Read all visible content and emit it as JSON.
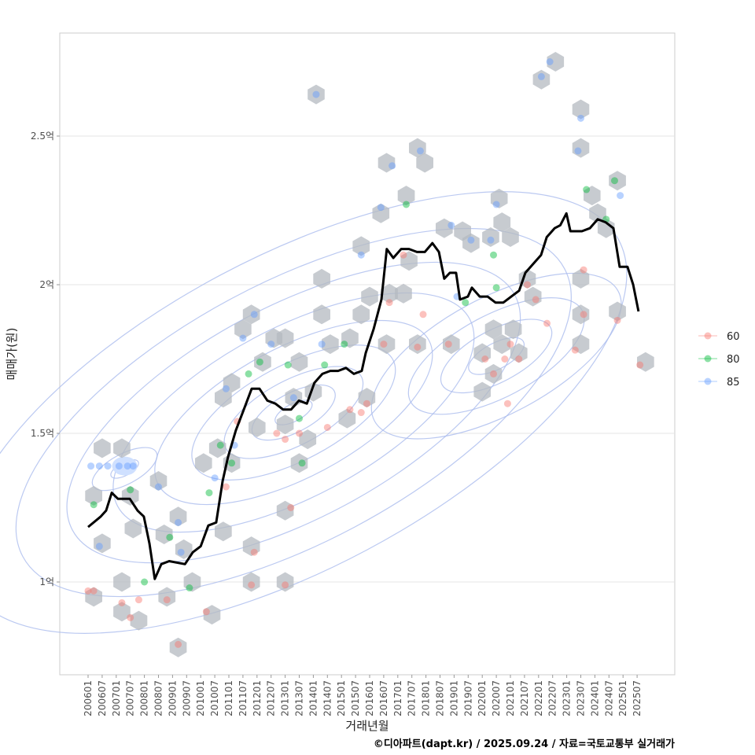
{
  "chart_data": {
    "type": "scatter",
    "title": "",
    "xlabel": "거래년월",
    "ylabel": "매매가(원)",
    "caption": "©디아파트(dapt.kr) / 2025.09.24 / 자료=국토교통부 실거래가",
    "xlim": [
      2005.0,
      2026.8
    ],
    "ylim": [
      0.7,
      2.87
    ],
    "x_ticks": [
      "200601",
      "200607",
      "200701",
      "200707",
      "200801",
      "200807",
      "200901",
      "200907",
      "201001",
      "201007",
      "201101",
      "201107",
      "201201",
      "201207",
      "201301",
      "201307",
      "201401",
      "201407",
      "201501",
      "201507",
      "201601",
      "201607",
      "201701",
      "201707",
      "201801",
      "201807",
      "201901",
      "201907",
      "202001",
      "202007",
      "202101",
      "202107",
      "202201",
      "202207",
      "202301",
      "202307",
      "202401",
      "202407",
      "202501",
      "202507"
    ],
    "y_ticks": [
      {
        "value": 1,
        "label": "1억"
      },
      {
        "value": 1.5,
        "label": "1.5억"
      },
      {
        "value": 2,
        "label": "2억"
      },
      {
        "value": 2.5,
        "label": "2.5억"
      }
    ],
    "grid": true,
    "legend": {
      "placement": "right",
      "entries": [
        {
          "name": "60",
          "color": "#F8766D"
        },
        {
          "name": "80",
          "color": "#00BA38"
        },
        {
          "name": "85",
          "color": "#619CFF"
        }
      ]
    },
    "median_line": {
      "color": "#000000",
      "x": [
        2006.0,
        2006.45,
        2006.64,
        2006.84,
        2007.06,
        2007.48,
        2007.76,
        2007.98,
        2008.18,
        2008.37,
        2008.6,
        2008.88,
        2009.44,
        2009.72,
        2010.0,
        2010.27,
        2010.55,
        2010.78,
        2010.97,
        2011.25,
        2011.53,
        2011.81,
        2012.09,
        2012.37,
        2012.65,
        2012.93,
        2013.21,
        2013.49,
        2013.77,
        2014.04,
        2014.32,
        2014.6,
        2014.88,
        2015.16,
        2015.44,
        2015.72,
        2015.86,
        2016.14,
        2016.42,
        2016.61,
        2016.84,
        2017.12,
        2017.4,
        2017.68,
        2017.96,
        2018.23,
        2018.46,
        2018.65,
        2018.85,
        2019.07,
        2019.21,
        2019.49,
        2019.63,
        2019.91,
        2020.19,
        2020.47,
        2020.75,
        2021.03,
        2021.31,
        2021.53,
        2021.81,
        2022.09,
        2022.29,
        2022.57,
        2022.77,
        2022.99,
        2023.13,
        2023.54,
        2023.82,
        2024.1,
        2024.38,
        2024.66,
        2024.88,
        2025.16,
        2025.36,
        2025.55
      ],
      "y": [
        1.185,
        1.22,
        1.24,
        1.3,
        1.28,
        1.28,
        1.24,
        1.22,
        1.13,
        1.01,
        1.06,
        1.07,
        1.06,
        1.1,
        1.12,
        1.19,
        1.2,
        1.34,
        1.42,
        1.51,
        1.58,
        1.65,
        1.65,
        1.61,
        1.6,
        1.58,
        1.58,
        1.61,
        1.6,
        1.67,
        1.7,
        1.71,
        1.71,
        1.72,
        1.7,
        1.71,
        1.77,
        1.85,
        1.95,
        2.12,
        2.09,
        2.12,
        2.12,
        2.11,
        2.11,
        2.14,
        2.11,
        2.02,
        2.04,
        2.04,
        1.95,
        1.96,
        1.99,
        1.96,
        1.96,
        1.94,
        1.94,
        1.96,
        1.98,
        2.04,
        2.07,
        2.1,
        2.16,
        2.19,
        2.2,
        2.24,
        2.18,
        2.18,
        2.19,
        2.22,
        2.21,
        2.19,
        2.06,
        2.06,
        2.0,
        1.91
      ]
    },
    "hexbins": [
      [
        2006.2,
        1.29
      ],
      [
        2006.5,
        1.45
      ],
      [
        2007.2,
        1.45
      ],
      [
        2006.5,
        1.13
      ],
      [
        2006.2,
        0.95
      ],
      [
        2007.2,
        1.0
      ],
      [
        2007.5,
        1.29
      ],
      [
        2007.6,
        1.18
      ],
      [
        2007.2,
        0.9
      ],
      [
        2007.8,
        0.87
      ],
      [
        2008.5,
        1.34
      ],
      [
        2008.8,
        0.95
      ],
      [
        2009.2,
        1.22
      ],
      [
        2009.2,
        0.78
      ],
      [
        2008.7,
        1.16
      ],
      [
        2009.4,
        1.11
      ],
      [
        2009.7,
        1.0
      ],
      [
        2010.4,
        0.89
      ],
      [
        2010.1,
        1.4
      ],
      [
        2010.8,
        1.17
      ],
      [
        2010.6,
        1.45
      ],
      [
        2011.1,
        1.4
      ],
      [
        2010.8,
        1.62
      ],
      [
        2011.1,
        1.67
      ],
      [
        2011.5,
        1.85
      ],
      [
        2011.8,
        1.9
      ],
      [
        2011.8,
        1.12
      ],
      [
        2011.8,
        1.0
      ],
      [
        2012.2,
        1.74
      ],
      [
        2012.0,
        1.52
      ],
      [
        2012.6,
        1.82
      ],
      [
        2013.0,
        1.82
      ],
      [
        2013.5,
        1.74
      ],
      [
        2013.0,
        1.53
      ],
      [
        2013.3,
        1.62
      ],
      [
        2014.0,
        1.64
      ],
      [
        2013.8,
        1.48
      ],
      [
        2013.5,
        1.4
      ],
      [
        2013.0,
        1.24
      ],
      [
        2013.0,
        1.0
      ],
      [
        2014.1,
        2.64
      ],
      [
        2014.3,
        2.02
      ],
      [
        2014.3,
        1.9
      ],
      [
        2014.6,
        1.8
      ],
      [
        2015.3,
        1.82
      ],
      [
        2015.7,
        1.9
      ],
      [
        2015.7,
        2.13
      ],
      [
        2016.0,
        1.96
      ],
      [
        2015.2,
        1.55
      ],
      [
        2015.9,
        1.62
      ],
      [
        2016.4,
        2.24
      ],
      [
        2016.6,
        1.8
      ],
      [
        2016.6,
        2.41
      ],
      [
        2016.7,
        1.97
      ],
      [
        2017.2,
        1.97
      ],
      [
        2017.3,
        2.3
      ],
      [
        2017.4,
        2.08
      ],
      [
        2017.7,
        2.46
      ],
      [
        2017.96,
        2.41
      ],
      [
        2017.7,
        1.8
      ],
      [
        2018.65,
        2.19
      ],
      [
        2018.9,
        1.8
      ],
      [
        2019.3,
        2.18
      ],
      [
        2019.6,
        2.14
      ],
      [
        2020.3,
        2.16
      ],
      [
        2020.6,
        2.29
      ],
      [
        2020.7,
        2.21
      ],
      [
        2021.0,
        2.16
      ],
      [
        2020.0,
        1.77
      ],
      [
        2020.0,
        1.64
      ],
      [
        2020.4,
        1.7
      ],
      [
        2020.7,
        1.8
      ],
      [
        2021.1,
        1.85
      ],
      [
        2021.3,
        1.77
      ],
      [
        2020.4,
        1.85
      ],
      [
        2021.6,
        2.02
      ],
      [
        2021.8,
        1.96
      ],
      [
        2022.1,
        2.69
      ],
      [
        2022.6,
        2.75
      ],
      [
        2023.5,
        2.59
      ],
      [
        2023.5,
        2.46
      ],
      [
        2023.9,
        2.3
      ],
      [
        2024.1,
        2.24
      ],
      [
        2024.4,
        2.19
      ],
      [
        2024.8,
        2.35
      ],
      [
        2023.5,
        2.02
      ],
      [
        2023.5,
        1.9
      ],
      [
        2023.5,
        1.8
      ],
      [
        2024.8,
        1.91
      ],
      [
        2025.8,
        1.74
      ]
    ],
    "points": [
      {
        "s": "60",
        "x": 2006.0,
        "y": 0.97
      },
      {
        "s": "60",
        "x": 2006.2,
        "y": 0.97
      },
      {
        "s": "85",
        "x": 2006.1,
        "y": 1.39
      },
      {
        "s": "85",
        "x": 2006.4,
        "y": 1.39
      },
      {
        "s": "85",
        "x": 2006.7,
        "y": 1.39
      },
      {
        "s": "85",
        "x": 2007.1,
        "y": 1.39
      },
      {
        "s": "85",
        "x": 2007.4,
        "y": 1.39
      },
      {
        "s": "85",
        "x": 2007.6,
        "y": 1.39
      },
      {
        "s": "80",
        "x": 2006.2,
        "y": 1.26
      },
      {
        "s": "80",
        "x": 2007.5,
        "y": 1.31
      },
      {
        "s": "85",
        "x": 2006.4,
        "y": 1.12
      },
      {
        "s": "60",
        "x": 2007.2,
        "y": 0.93
      },
      {
        "s": "60",
        "x": 2007.5,
        "y": 0.88
      },
      {
        "s": "60",
        "x": 2007.8,
        "y": 0.94
      },
      {
        "s": "80",
        "x": 2008.0,
        "y": 1.0
      },
      {
        "s": "85",
        "x": 2008.5,
        "y": 1.32
      },
      {
        "s": "60",
        "x": 2008.8,
        "y": 0.94
      },
      {
        "s": "85",
        "x": 2009.2,
        "y": 1.2
      },
      {
        "s": "80",
        "x": 2008.9,
        "y": 1.15
      },
      {
        "s": "85",
        "x": 2009.3,
        "y": 1.1
      },
      {
        "s": "60",
        "x": 2009.2,
        "y": 0.79
      },
      {
        "s": "80",
        "x": 2009.6,
        "y": 0.98
      },
      {
        "s": "60",
        "x": 2010.2,
        "y": 0.9
      },
      {
        "s": "80",
        "x": 2010.3,
        "y": 1.3
      },
      {
        "s": "85",
        "x": 2010.5,
        "y": 1.35
      },
      {
        "s": "60",
        "x": 2010.9,
        "y": 1.32
      },
      {
        "s": "80",
        "x": 2010.7,
        "y": 1.46
      },
      {
        "s": "85",
        "x": 2011.2,
        "y": 1.46
      },
      {
        "s": "80",
        "x": 2011.1,
        "y": 1.4
      },
      {
        "s": "85",
        "x": 2010.9,
        "y": 1.65
      },
      {
        "s": "60",
        "x": 2011.3,
        "y": 1.54
      },
      {
        "s": "80",
        "x": 2011.7,
        "y": 1.7
      },
      {
        "s": "85",
        "x": 2011.5,
        "y": 1.82
      },
      {
        "s": "85",
        "x": 2011.9,
        "y": 1.9
      },
      {
        "s": "60",
        "x": 2011.9,
        "y": 1.1
      },
      {
        "s": "60",
        "x": 2011.8,
        "y": 0.99
      },
      {
        "s": "80",
        "x": 2012.1,
        "y": 1.74
      },
      {
        "s": "85",
        "x": 2012.5,
        "y": 1.8
      },
      {
        "s": "60",
        "x": 2012.7,
        "y": 1.5
      },
      {
        "s": "60",
        "x": 2013.0,
        "y": 1.48
      },
      {
        "s": "80",
        "x": 2013.1,
        "y": 1.73
      },
      {
        "s": "85",
        "x": 2013.3,
        "y": 1.62
      },
      {
        "s": "60",
        "x": 2013.5,
        "y": 1.5
      },
      {
        "s": "80",
        "x": 2013.5,
        "y": 1.55
      },
      {
        "s": "60",
        "x": 2013.2,
        "y": 1.25
      },
      {
        "s": "60",
        "x": 2013.0,
        "y": 0.99
      },
      {
        "s": "80",
        "x": 2013.6,
        "y": 1.4
      },
      {
        "s": "85",
        "x": 2014.1,
        "y": 2.64
      },
      {
        "s": "85",
        "x": 2014.3,
        "y": 1.8
      },
      {
        "s": "80",
        "x": 2014.4,
        "y": 1.73
      },
      {
        "s": "60",
        "x": 2014.5,
        "y": 1.52
      },
      {
        "s": "80",
        "x": 2015.1,
        "y": 1.8
      },
      {
        "s": "60",
        "x": 2015.3,
        "y": 1.58
      },
      {
        "s": "60",
        "x": 2015.7,
        "y": 1.57
      },
      {
        "s": "60",
        "x": 2015.9,
        "y": 1.6
      },
      {
        "s": "85",
        "x": 2015.7,
        "y": 2.1
      },
      {
        "s": "85",
        "x": 2016.4,
        "y": 2.26
      },
      {
        "s": "60",
        "x": 2016.5,
        "y": 1.8
      },
      {
        "s": "85",
        "x": 2016.8,
        "y": 2.4
      },
      {
        "s": "60",
        "x": 2016.7,
        "y": 1.94
      },
      {
        "s": "80",
        "x": 2017.3,
        "y": 2.27
      },
      {
        "s": "60",
        "x": 2017.2,
        "y": 2.1
      },
      {
        "s": "85",
        "x": 2017.8,
        "y": 2.45
      },
      {
        "s": "60",
        "x": 2017.7,
        "y": 1.79
      },
      {
        "s": "60",
        "x": 2017.9,
        "y": 1.9
      },
      {
        "s": "85",
        "x": 2018.9,
        "y": 2.2
      },
      {
        "s": "60",
        "x": 2018.8,
        "y": 1.8
      },
      {
        "s": "85",
        "x": 2019.1,
        "y": 1.96
      },
      {
        "s": "80",
        "x": 2019.4,
        "y": 1.94
      },
      {
        "s": "85",
        "x": 2019.6,
        "y": 2.15
      },
      {
        "s": "85",
        "x": 2020.3,
        "y": 2.15
      },
      {
        "s": "85",
        "x": 2020.5,
        "y": 2.27
      },
      {
        "s": "80",
        "x": 2020.4,
        "y": 2.1
      },
      {
        "s": "80",
        "x": 2020.5,
        "y": 1.99
      },
      {
        "s": "60",
        "x": 2020.1,
        "y": 1.75
      },
      {
        "s": "60",
        "x": 2020.4,
        "y": 1.7
      },
      {
        "s": "60",
        "x": 2020.8,
        "y": 1.75
      },
      {
        "s": "60",
        "x": 2021.0,
        "y": 1.8
      },
      {
        "s": "60",
        "x": 2020.9,
        "y": 1.6
      },
      {
        "s": "60",
        "x": 2021.3,
        "y": 1.75
      },
      {
        "s": "60",
        "x": 2021.6,
        "y": 2.0
      },
      {
        "s": "60",
        "x": 2021.9,
        "y": 1.95
      },
      {
        "s": "85",
        "x": 2022.1,
        "y": 2.7
      },
      {
        "s": "85",
        "x": 2022.4,
        "y": 2.75
      },
      {
        "s": "60",
        "x": 2022.3,
        "y": 1.87
      },
      {
        "s": "85",
        "x": 2023.5,
        "y": 2.56
      },
      {
        "s": "85",
        "x": 2023.4,
        "y": 2.45
      },
      {
        "s": "80",
        "x": 2023.7,
        "y": 2.32
      },
      {
        "s": "60",
        "x": 2023.6,
        "y": 2.05
      },
      {
        "s": "60",
        "x": 2023.6,
        "y": 1.9
      },
      {
        "s": "60",
        "x": 2023.3,
        "y": 1.78
      },
      {
        "s": "80",
        "x": 2024.4,
        "y": 2.22
      },
      {
        "s": "80",
        "x": 2024.7,
        "y": 2.35
      },
      {
        "s": "85",
        "x": 2024.9,
        "y": 2.3
      },
      {
        "s": "60",
        "x": 2024.8,
        "y": 1.88
      },
      {
        "s": "60",
        "x": 2025.6,
        "y": 1.73
      }
    ]
  }
}
